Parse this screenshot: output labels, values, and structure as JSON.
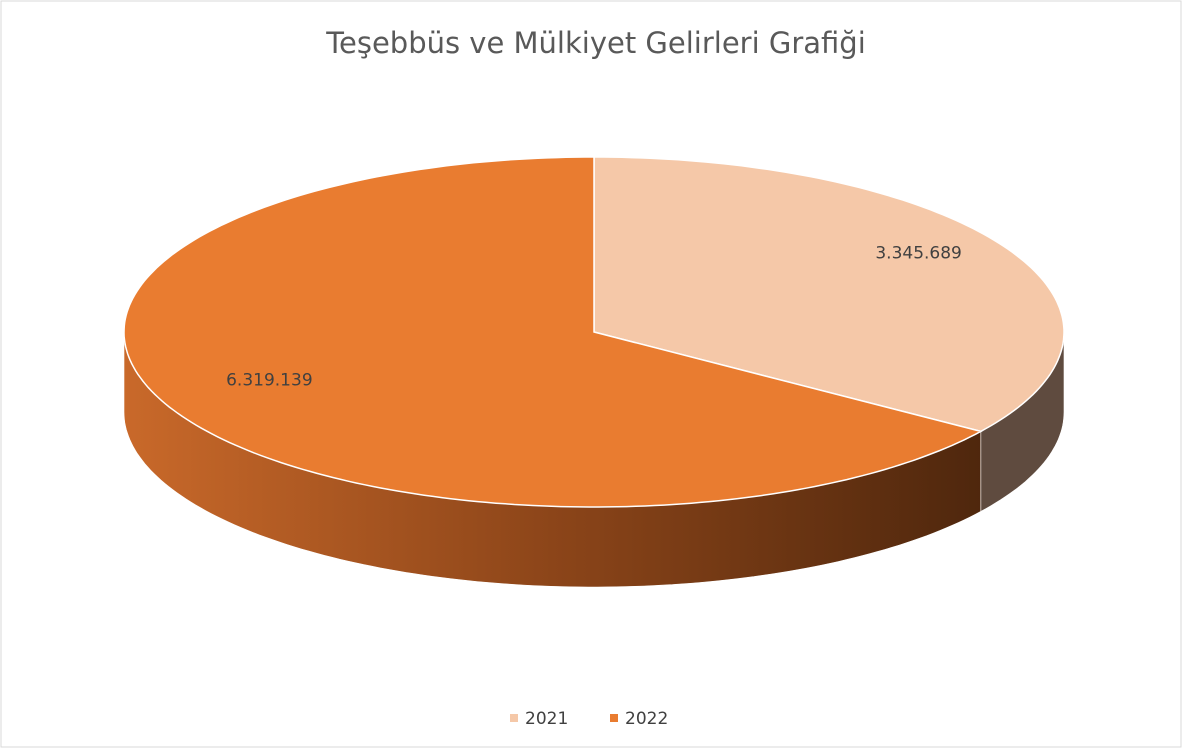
{
  "chart_data": {
    "type": "pie",
    "title": "Teşebbüs ve Mülkiyet Gelirleri Grafiği",
    "categories": [
      "2021",
      "2022"
    ],
    "values": [
      3345689,
      6319139
    ],
    "value_labels": [
      "3.345.689",
      "6.319.139"
    ],
    "colors": [
      "#f5c8a8",
      "#e97c30"
    ],
    "legend": "bottom"
  }
}
